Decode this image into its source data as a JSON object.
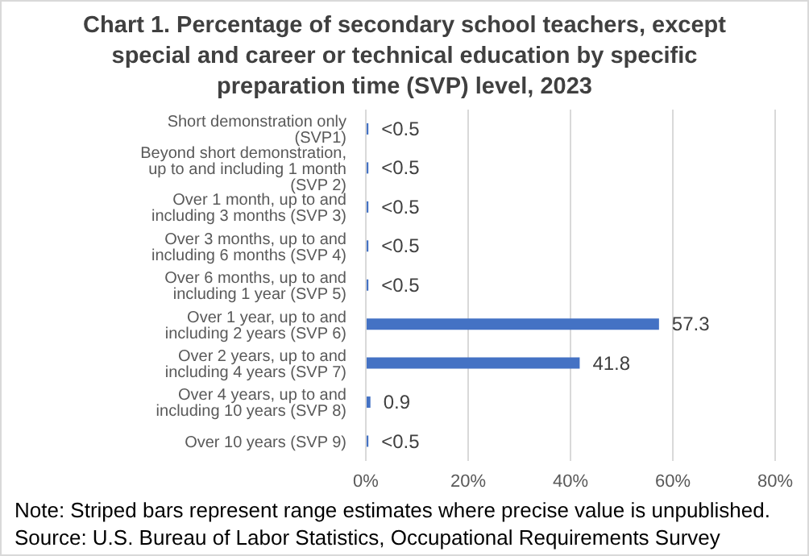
{
  "chart_data": {
    "type": "bar",
    "orientation": "horizontal",
    "title": "Chart 1. Percentage of secondary school teachers, except special and career or technical education by specific preparation time (SVP) level, 2023",
    "categories": [
      "Short demonstration only (SVP1)",
      "Beyond short demonstration, up to and including 1 month (SVP 2)",
      "Over 1 month, up to and including 3 months (SVP 3)",
      "Over 3 months, up to and including 6 months (SVP 4)",
      "Over 6 months, up to and including 1 year (SVP 5)",
      "Over 1 year, up to and including 2 years (SVP 6)",
      "Over 2 years, up to and including 4 years (SVP 7)",
      "Over 4 years, up to and including 10 years (SVP 8)",
      "Over 10 years (SVP 9)"
    ],
    "values": [
      0.5,
      0.5,
      0.5,
      0.5,
      0.5,
      57.3,
      41.8,
      0.9,
      0.5
    ],
    "value_labels": [
      "<0.5",
      "<0.5",
      "<0.5",
      "<0.5",
      "<0.5",
      "57.3",
      "41.8",
      "0.9",
      "<0.5"
    ],
    "color": "#4472c4",
    "xlim": [
      0,
      80
    ],
    "xticks": [
      {
        "value": 0,
        "label": "0%"
      },
      {
        "value": 20,
        "label": "20%"
      },
      {
        "value": 40,
        "label": "40%"
      },
      {
        "value": 60,
        "label": "60%"
      },
      {
        "value": 80,
        "label": "80%"
      }
    ],
    "grid": "x",
    "legend": false,
    "annotations": [
      "Note: Striped bars represent range estimates where precise value is unpublished.",
      "Source: U.S. Bureau of Labor Statistics, Occupational Requirements Survey"
    ]
  }
}
